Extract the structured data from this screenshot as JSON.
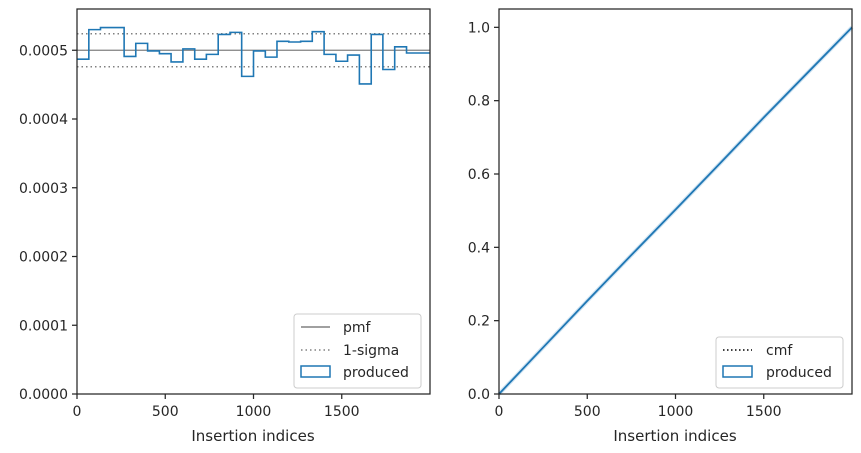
{
  "chart_data": [
    {
      "type": "line",
      "subtype": "step-histogram",
      "xlabel": "Insertion indices",
      "ylabel": "",
      "xlim": [
        0,
        2000
      ],
      "ylim": [
        0,
        0.00056
      ],
      "xticks": [
        0,
        500,
        1000,
        1500
      ],
      "yticks": [
        0.0,
        0.0001,
        0.0002,
        0.0003,
        0.0004,
        0.0005
      ],
      "ytick_labels": [
        "0.0000",
        "0.0001",
        "0.0002",
        "0.0003",
        "0.0004",
        "0.0005"
      ],
      "grid": false,
      "legend_position": "lower-right",
      "legend": [
        "pmf",
        "1-sigma",
        "produced"
      ],
      "series": [
        {
          "name": "pmf",
          "style": "solid",
          "color": "#808080",
          "y": 0.0005
        },
        {
          "name": "1-sigma",
          "style": "dotted",
          "color": "#808080",
          "y_values": [
            0.000524,
            0.000476
          ]
        },
        {
          "name": "produced",
          "style": "step",
          "color": "#1f77b4",
          "bin_edges": [
            0,
            67,
            133,
            200,
            267,
            333,
            400,
            467,
            533,
            600,
            667,
            733,
            800,
            867,
            933,
            1000,
            1067,
            1133,
            1200,
            1267,
            1333,
            1400,
            1467,
            1533,
            1600,
            1667,
            1733,
            1800,
            1867,
            1933,
            2000
          ],
          "values": [
            0.000487,
            0.00053,
            0.000533,
            0.000533,
            0.000491,
            0.00051,
            0.000499,
            0.000495,
            0.000483,
            0.000502,
            0.000487,
            0.000494,
            0.000523,
            0.000526,
            0.000462,
            0.000499,
            0.00049,
            0.000513,
            0.000512,
            0.000513,
            0.000527,
            0.000494,
            0.000484,
            0.000493,
            0.000451,
            0.000523,
            0.000472,
            0.000505,
            0.000496,
            0.000496
          ]
        }
      ]
    },
    {
      "type": "line",
      "xlabel": "Insertion indices",
      "ylabel": "",
      "xlim": [
        0,
        2000
      ],
      "ylim": [
        0,
        1.05
      ],
      "xticks": [
        0,
        500,
        1000,
        1500
      ],
      "yticks": [
        0.0,
        0.2,
        0.4,
        0.6,
        0.8,
        1.0
      ],
      "ytick_labels": [
        "0.0",
        "0.2",
        "0.4",
        "0.6",
        "0.8",
        "1.0"
      ],
      "grid": false,
      "legend_position": "lower-right",
      "legend": [
        "cmf",
        "produced"
      ],
      "series": [
        {
          "name": "cmf",
          "style": "dotted",
          "color": "#000000",
          "x": [
            0,
            2000
          ],
          "y": [
            0,
            1.0
          ]
        },
        {
          "name": "produced",
          "style": "step",
          "color": "#1f77b4",
          "x": [
            0,
            250,
            500,
            750,
            1000,
            1250,
            1500,
            1750,
            2000
          ],
          "y": [
            0,
            0.127,
            0.254,
            0.379,
            0.503,
            0.628,
            0.754,
            0.877,
            1.0
          ]
        }
      ]
    }
  ]
}
